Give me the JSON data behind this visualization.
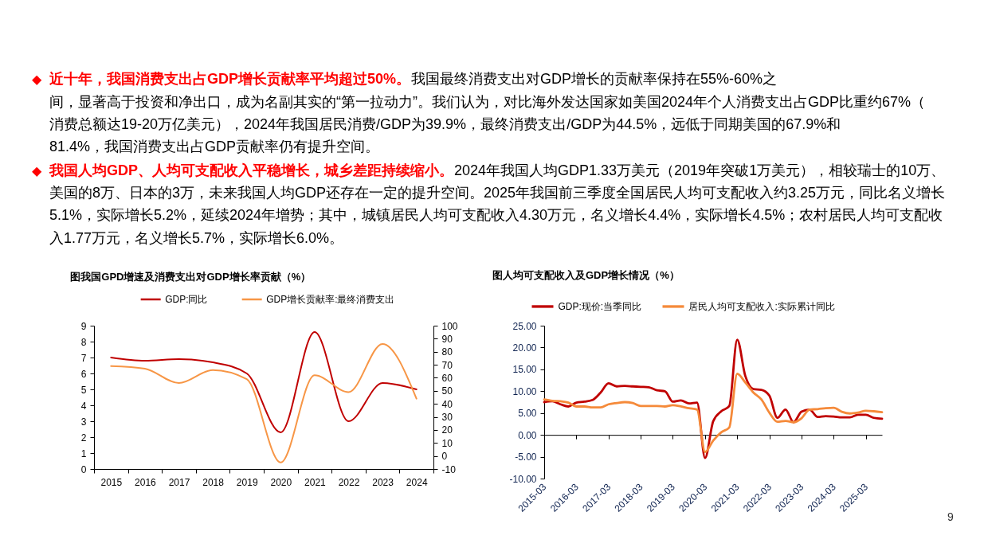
{
  "chart_data": [
    {
      "type": "other",
      "annotations": [
        "◆",
        "近十年，我国消费支出占GDP增长贡献率平均超过50%。",
        "我国最终消费支出对GDP增长的贡献率保持在55%-60%之",
        "间，显著高于投资和净出口，成为名副其实的“第一拉动力”。我们认为，对比海外发达国家如美国2024年个人消费支出占GDP比重约67%（",
        "消费总额达19-20万亿美元），2024年我国居民消费/GDP为39.9%，最终消费支出/GDP为44.5%，远低于同期美国的67.9%和",
        "81.4%，我国消费支出占GDP贡献率仍有提升空间。",
        "◆",
        "我国人均GDP、人均可支配收入平稳增长，城乡差距持续缩小。",
        "2024年我国人均GDP1.33万美元（2019年突破1万美元），相较瑞士的10万、",
        "美国的8万、日本的3万，未来我国人均GDP还存在一定的提升空间。2025年我国前三季度全国居民人均可支配收入约3.25万元，同比名义增长",
        "5.1%，实际增长5.2%，延续2024年增势；其中，城镇居民人均可支配收入4.30万元，名义增长4.4%，实际增长4.5%；农村居民人均可支配收",
        "入1.77万元，名义增长5.7%，实际增长6.0%。",
        "9"
      ]
    },
    {
      "type": "line",
      "title": "图我国GPD增速及消费支出对GDP增长率贡献（%）",
      "categories": [
        "2015",
        "2016",
        "2017",
        "2018",
        "2019",
        "2020",
        "2021",
        "2022",
        "2023",
        "2024"
      ],
      "series": [
        {
          "name": "GDP:同比",
          "color": "#c00000",
          "values": [
            7.0,
            6.8,
            6.9,
            6.7,
            6.0,
            2.3,
            8.6,
            3.0,
            5.4,
            5.0
          ]
        },
        {
          "name": "GDP增长贡献率:最终消费支出",
          "color": "#f79646",
          "axis": "y2",
          "values": [
            69,
            67,
            56,
            66,
            59,
            -5,
            62,
            49,
            86,
            44
          ]
        }
      ],
      "ylim": [
        0,
        9
      ],
      "yticks": [
        0,
        1,
        2,
        3,
        4,
        5,
        6,
        7,
        8,
        9
      ],
      "y2lim": [
        -10,
        100
      ],
      "y2ticks": [
        -10,
        0,
        10,
        20,
        30,
        40,
        50,
        60,
        70,
        80,
        90,
        100
      ],
      "legend": "top"
    },
    {
      "type": "line",
      "title": "图人均可支配收入及GDP增长情况（%）",
      "x": [
        "2015-03",
        "2015-06",
        "2015-09",
        "2015-12",
        "2016-03",
        "2016-06",
        "2016-09",
        "2016-12",
        "2017-03",
        "2017-06",
        "2017-09",
        "2017-12",
        "2018-03",
        "2018-06",
        "2018-09",
        "2018-12",
        "2019-03",
        "2019-06",
        "2019-09",
        "2019-12",
        "2020-03",
        "2020-06",
        "2020-09",
        "2020-12",
        "2021-03",
        "2021-06",
        "2021-09",
        "2021-12",
        "2022-03",
        "2022-06",
        "2022-09",
        "2022-12",
        "2023-03",
        "2023-06",
        "2023-09",
        "2023-12",
        "2024-03",
        "2024-06",
        "2024-09",
        "2024-12",
        "2025-03",
        "2025-06",
        "2025-09"
      ],
      "series": [
        {
          "name": "GDP:现价:当季同比",
          "color": "#c00000",
          "values": [
            7.5,
            7.7,
            7.0,
            6.5,
            7.4,
            7.6,
            8.0,
            9.7,
            11.8,
            11.1,
            11.2,
            11.1,
            11.0,
            10.9,
            10.2,
            10.0,
            7.6,
            7.9,
            7.2,
            7.4,
            -5.3,
            3.1,
            5.4,
            6.6,
            21.8,
            13.5,
            10.5,
            10.3,
            9.0,
            3.9,
            5.8,
            2.9,
            5.3,
            5.8,
            4.1,
            4.3,
            4.2,
            4.0,
            4.0,
            4.6,
            4.6,
            3.9,
            3.7
          ]
        },
        {
          "name": "居民人均可支配收入:实际累计同比",
          "color": "#f58a3a",
          "values": [
            8.1,
            7.8,
            7.7,
            7.4,
            6.5,
            6.5,
            6.3,
            6.3,
            7.0,
            7.3,
            7.5,
            7.3,
            6.6,
            6.6,
            6.6,
            6.5,
            6.8,
            6.5,
            6.1,
            5.8,
            -3.9,
            -1.3,
            0.6,
            1.7,
            14.0,
            12.0,
            9.7,
            8.1,
            5.1,
            3.0,
            3.2,
            2.9,
            3.8,
            5.8,
            5.9,
            6.1,
            6.2,
            5.3,
            4.9,
            5.1,
            5.5,
            5.4,
            5.2
          ]
        }
      ],
      "xlim": [
        "2015-03",
        "2025-09"
      ],
      "xticks": [
        "2015-03",
        "2016-03",
        "2017-03",
        "2018-03",
        "2019-03",
        "2020-03",
        "2021-03",
        "2022-03",
        "2023-03",
        "2024-03",
        "2025-03"
      ],
      "ylim": [
        -10,
        25
      ],
      "yticks": [
        {
          "value": -10,
          "label": "-10.00"
        },
        {
          "value": -5,
          "label": "-5.00"
        },
        {
          "value": 0,
          "label": "0.00"
        },
        {
          "value": 5,
          "label": "5.00"
        },
        {
          "value": 10,
          "label": "10.00"
        },
        {
          "value": 15,
          "label": "15.00"
        },
        {
          "value": 20,
          "label": "20.00"
        },
        {
          "value": 25,
          "label": "25.00"
        }
      ],
      "legend": "top"
    }
  ]
}
